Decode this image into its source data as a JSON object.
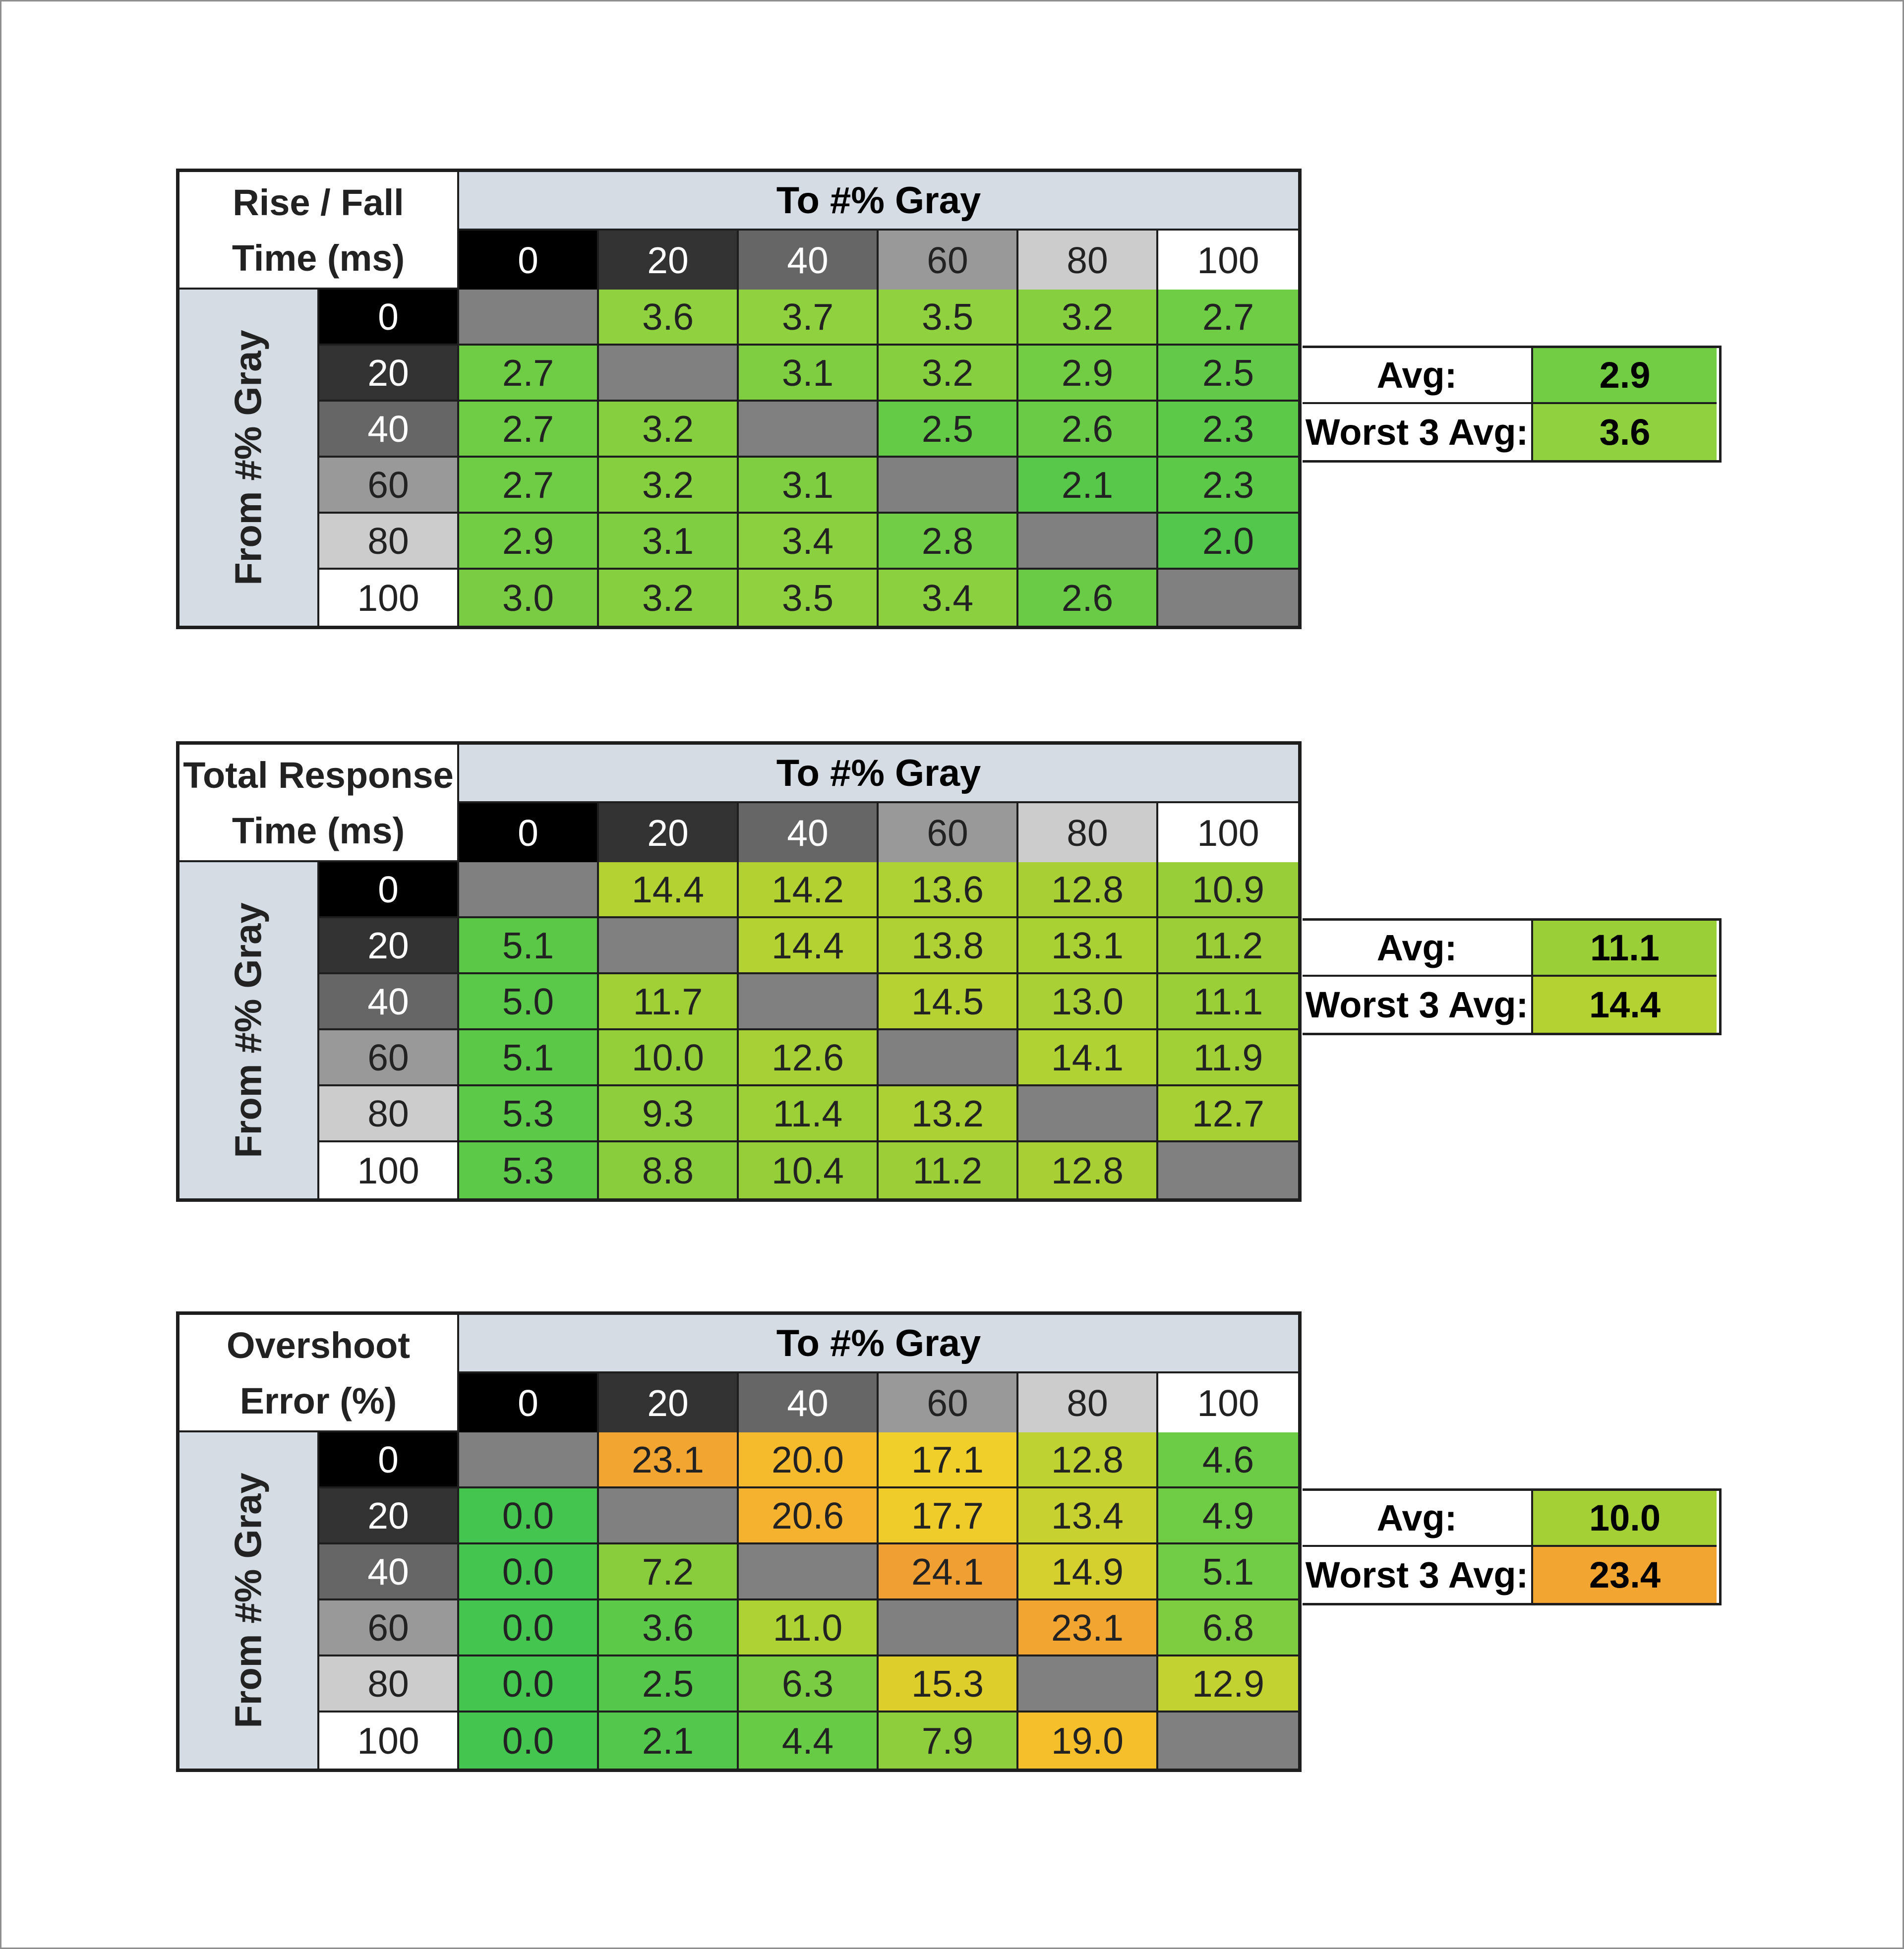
{
  "chart_data": [
    {
      "type": "heatmap",
      "title_line1": "Rise / Fall",
      "title_line2": "Time (ms)",
      "col_header": "To #% Gray",
      "row_header": "From #% Gray",
      "col_labels": [
        "0",
        "20",
        "40",
        "60",
        "80",
        "100"
      ],
      "row_labels": [
        "0",
        "20",
        "40",
        "60",
        "80",
        "100"
      ],
      "values": [
        [
          "",
          "3.6",
          "3.7",
          "3.5",
          "3.2",
          "2.7"
        ],
        [
          "2.7",
          "",
          "3.1",
          "3.2",
          "2.9",
          "2.5"
        ],
        [
          "2.7",
          "3.2",
          "",
          "2.5",
          "2.6",
          "2.3"
        ],
        [
          "2.7",
          "3.2",
          "3.1",
          "",
          "2.1",
          "2.3"
        ],
        [
          "2.9",
          "3.1",
          "3.4",
          "2.8",
          "",
          "2.0"
        ],
        [
          "3.0",
          "3.2",
          "3.5",
          "3.4",
          "2.6",
          ""
        ]
      ],
      "colors": [
        [
          "#808080",
          "#8fd13f",
          "#8fd13f",
          "#8fd13f",
          "#86cf3f",
          "#6ecc45"
        ],
        [
          "#6ecc45",
          "#808080",
          "#7fce41",
          "#86cf3f",
          "#72cd44",
          "#62ca48"
        ],
        [
          "#6ecc45",
          "#86cf3f",
          "#808080",
          "#64cb47",
          "#6acc46",
          "#5cc948"
        ],
        [
          "#6ecc45",
          "#86cf3f",
          "#7fce41",
          "#808080",
          "#58c84a",
          "#5cc948"
        ],
        [
          "#72cd44",
          "#7fce41",
          "#8bd03f",
          "#70cd45",
          "#808080",
          "#52c74b"
        ],
        [
          "#7acd42",
          "#86cf3f",
          "#8fd13f",
          "#8bd03f",
          "#6acc46",
          "#808080"
        ]
      ],
      "summary": {
        "avg_label": "Avg:",
        "avg": "2.9",
        "avg_color": "#72cd44",
        "worst_label": "Worst 3 Avg:",
        "worst": "3.6",
        "worst_color": "#8fd13f"
      }
    },
    {
      "type": "heatmap",
      "title_line1": "Total Response",
      "title_line2": "Time (ms)",
      "col_header": "To #% Gray",
      "row_header": "From #% Gray",
      "col_labels": [
        "0",
        "20",
        "40",
        "60",
        "80",
        "100"
      ],
      "row_labels": [
        "0",
        "20",
        "40",
        "60",
        "80",
        "100"
      ],
      "values": [
        [
          "",
          "14.4",
          "14.2",
          "13.6",
          "12.8",
          "10.9"
        ],
        [
          "5.1",
          "",
          "14.4",
          "13.8",
          "13.1",
          "11.2"
        ],
        [
          "5.0",
          "11.7",
          "",
          "14.5",
          "13.0",
          "11.1"
        ],
        [
          "5.1",
          "10.0",
          "12.6",
          "",
          "14.1",
          "11.9"
        ],
        [
          "5.3",
          "9.3",
          "11.4",
          "13.2",
          "",
          "12.7"
        ],
        [
          "5.3",
          "8.8",
          "10.4",
          "11.2",
          "12.8",
          ""
        ]
      ],
      "colors": [
        [
          "#808080",
          "#b4d232",
          "#b3d232",
          "#aed133",
          "#a8d034",
          "#98cf38"
        ],
        [
          "#5bc848",
          "#808080",
          "#b4d232",
          "#afd133",
          "#aad134",
          "#9ccf37"
        ],
        [
          "#5ac848",
          "#a0cf36",
          "#808080",
          "#b6d232",
          "#a9d034",
          "#9bcf37"
        ],
        [
          "#5bc848",
          "#94ce39",
          "#a6d035",
          "#808080",
          "#b1d233",
          "#a0cf36"
        ],
        [
          "#5cc948",
          "#8ecd3b",
          "#9dcf37",
          "#acd134",
          "#808080",
          "#a7d035"
        ],
        [
          "#5cc948",
          "#8acd3c",
          "#96ce39",
          "#9ccf37",
          "#a8d034",
          "#808080"
        ]
      ],
      "summary": {
        "avg_label": "Avg:",
        "avg": "11.1",
        "avg_color": "#9bcf37",
        "worst_label": "Worst 3 Avg:",
        "worst": "14.4",
        "worst_color": "#b4d232"
      }
    },
    {
      "type": "heatmap",
      "title_line1": "Overshoot",
      "title_line2": "Error (%)",
      "col_header": "To #% Gray",
      "row_header": "From #% Gray",
      "col_labels": [
        "0",
        "20",
        "40",
        "60",
        "80",
        "100"
      ],
      "row_labels": [
        "0",
        "20",
        "40",
        "60",
        "80",
        "100"
      ],
      "values": [
        [
          "",
          "23.1",
          "20.0",
          "17.1",
          "12.8",
          "4.6"
        ],
        [
          "0.0",
          "",
          "20.6",
          "17.7",
          "13.4",
          "4.9"
        ],
        [
          "0.0",
          "7.2",
          "",
          "24.1",
          "14.9",
          "5.1"
        ],
        [
          "0.0",
          "3.6",
          "11.0",
          "",
          "23.1",
          "6.8"
        ],
        [
          "0.0",
          "2.5",
          "6.3",
          "15.3",
          "",
          "12.9"
        ],
        [
          "0.0",
          "2.1",
          "4.4",
          "7.9",
          "19.0",
          ""
        ]
      ],
      "colors": [
        [
          "#808080",
          "#f2a530",
          "#f5bb2c",
          "#f0cf2a",
          "#bed232",
          "#6ccc46"
        ],
        [
          "#43c54f",
          "#808080",
          "#f4b22e",
          "#f0cc2a",
          "#c7d231",
          "#6ecc45"
        ],
        [
          "#43c54f",
          "#8acd3c",
          "#808080",
          "#f09f32",
          "#d6d02e",
          "#70cd45"
        ],
        [
          "#43c54f",
          "#5dc948",
          "#aed133",
          "#808080",
          "#f2a530",
          "#7ecd41"
        ],
        [
          "#43c54f",
          "#55c74a",
          "#7acd42",
          "#dece2c",
          "#808080",
          "#c2d231"
        ],
        [
          "#43c54f",
          "#52c74b",
          "#68cb46",
          "#8ecd3b",
          "#f5bf2c",
          "#808080"
        ]
      ],
      "summary": {
        "avg_label": "Avg:",
        "avg": "10.0",
        "avg_color": "#a4d035",
        "worst_label": "Worst 3 Avg:",
        "worst": "23.4",
        "worst_color": "#f2a530"
      }
    }
  ],
  "header_colors": [
    "#000000",
    "#333333",
    "#666666",
    "#999999",
    "#cccccc",
    "#ffffff"
  ],
  "header_text_colors": [
    "#ffffff",
    "#ffffff",
    "#ffffff",
    "#222222",
    "#222222",
    "#222222"
  ]
}
